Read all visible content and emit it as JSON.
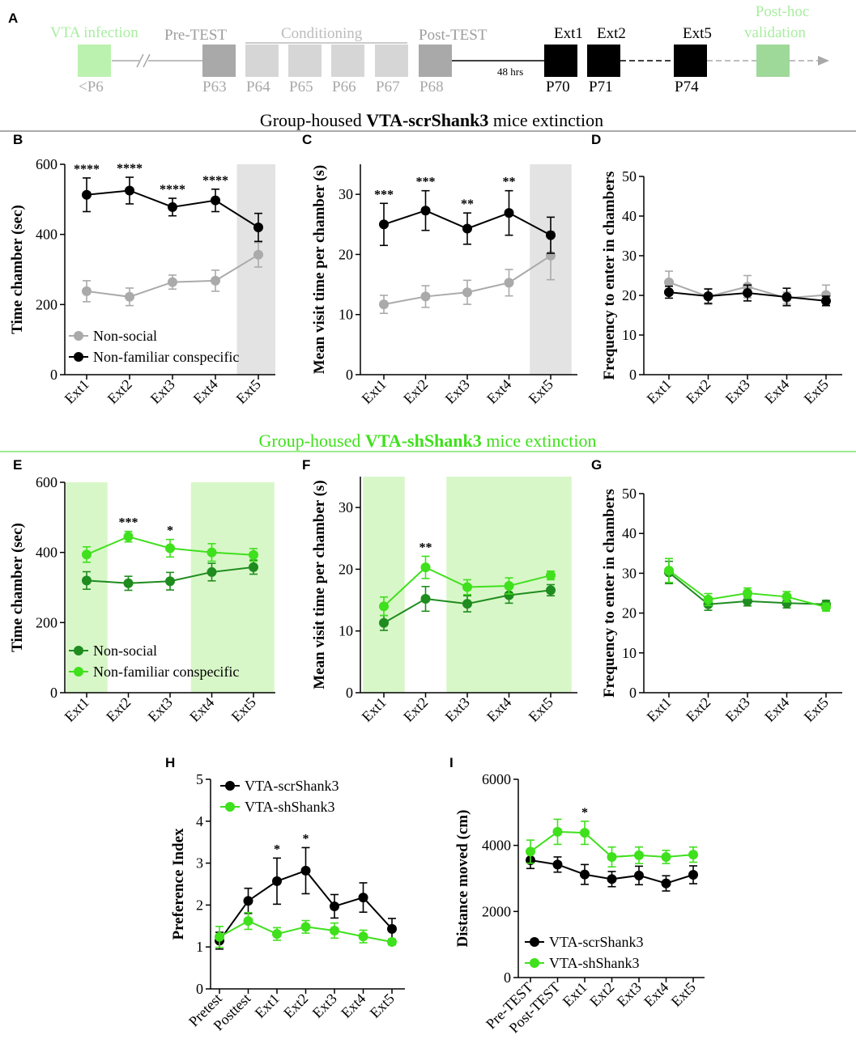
{
  "colors": {
    "black": "#000000",
    "gray": "#aaaaaa",
    "dark_green": "#1e8c1e",
    "light_green": "#3fe01c",
    "shade_gray": "#e3e3e3",
    "shade_green": "#d8f7c8",
    "timeline_green_text": "#a8eea0",
    "timeline_green_box": "#bcf2b0",
    "validation_box": "#9fd99a",
    "conditioning": "#d6d6d6",
    "test_box": "#a9a9a9",
    "section_line_green": "#7be86a"
  },
  "timeline": {
    "panel_label": "A",
    "vta_infection": "VTA infection",
    "pre_test": "Pre-TEST",
    "conditioning": "Conditioning",
    "post_test": "Post-TEST",
    "post_hoc_line1": "Post-hoc",
    "post_hoc_line2": "validation",
    "ext1": "Ext1",
    "ext2": "Ext2",
    "ext5": "Ext5",
    "hrs": "48 hrs",
    "day_lt6": "<P6",
    "days_gray": [
      "P63",
      "P64",
      "P65",
      "P66",
      "P67",
      "P68"
    ],
    "days_black": [
      "P70",
      "P71",
      "P74"
    ]
  },
  "section1": {
    "prefix": "Group-housed ",
    "bold": "VTA-scrShank3",
    "suffix": " mice extinction"
  },
  "section2": {
    "prefix": "Group-housed ",
    "bold": "VTA-shShank3",
    "suffix": " mice extinction"
  },
  "chart_data": [
    {
      "panel": "B",
      "type": "line",
      "ylabel": "Time chamber (sec)",
      "ylim": [
        0,
        600
      ],
      "yticks": [
        0,
        200,
        400,
        600
      ],
      "categories": [
        "Ext1",
        "Ext2",
        "Ext3",
        "Ext4",
        "Ext5"
      ],
      "shaded": [
        [
          4,
          4
        ]
      ],
      "shade": "gray",
      "series": [
        {
          "name": "Non-social",
          "color": "gray",
          "values": [
            238,
            222,
            264,
            268,
            342
          ],
          "errors": [
            30,
            25,
            20,
            30,
            35
          ]
        },
        {
          "name": "Non-familiar conspecific",
          "color": "black",
          "values": [
            513,
            525,
            478,
            497,
            420
          ],
          "errors": [
            48,
            38,
            25,
            32,
            40
          ]
        }
      ],
      "annotations": [
        {
          "index": 0,
          "text": "****"
        },
        {
          "index": 1,
          "text": "****"
        },
        {
          "index": 2,
          "text": "****"
        },
        {
          "index": 3,
          "text": "****"
        }
      ],
      "legend": "bottom-left"
    },
    {
      "panel": "C",
      "type": "line",
      "ylabel": "Mean visit time per chamber (s)",
      "ylim": [
        0,
        35
      ],
      "yticks": [
        0,
        10,
        20,
        30
      ],
      "categories": [
        "Ext1",
        "Ext2",
        "Ext3",
        "Ext4",
        "Ext5"
      ],
      "shaded": [
        [
          4,
          4
        ]
      ],
      "shade": "gray",
      "series": [
        {
          "name": "Non-social",
          "color": "gray",
          "values": [
            11.7,
            13.0,
            13.7,
            15.3,
            19.8
          ],
          "errors": [
            1.5,
            1.8,
            2.0,
            2.2,
            4.0
          ]
        },
        {
          "name": "Non-familiar conspecific",
          "color": "black",
          "values": [
            25.0,
            27.3,
            24.3,
            26.9,
            23.2
          ],
          "errors": [
            3.5,
            3.3,
            2.6,
            3.7,
            3.0
          ]
        }
      ],
      "annotations": [
        {
          "index": 0,
          "text": "***"
        },
        {
          "index": 1,
          "text": "***"
        },
        {
          "index": 2,
          "text": "**"
        },
        {
          "index": 3,
          "text": "**"
        }
      ]
    },
    {
      "panel": "D",
      "type": "line",
      "ylabel": "Frequency to enter in chambers",
      "ylim": [
        0,
        50
      ],
      "yticks": [
        0,
        10,
        20,
        30,
        40,
        50
      ],
      "categories": [
        "Ext1",
        "Ext2",
        "Ext3",
        "Ext4",
        "Ext5"
      ],
      "shaded": [],
      "series": [
        {
          "name": "Non-social",
          "color": "gray",
          "values": [
            23.3,
            19.7,
            22.2,
            19.3,
            20.1
          ],
          "errors": [
            2.8,
            2.0,
            2.8,
            1.5,
            2.5
          ]
        },
        {
          "name": "Non-familiar conspecific",
          "color": "black",
          "values": [
            20.8,
            19.8,
            20.6,
            19.6,
            18.6
          ],
          "errors": [
            1.5,
            1.8,
            2.0,
            2.2,
            1.2
          ]
        }
      ],
      "annotations": []
    },
    {
      "panel": "E",
      "type": "line",
      "ylabel": "Time chamber (sec)",
      "ylim": [
        0,
        600
      ],
      "yticks": [
        0,
        200,
        400,
        600
      ],
      "categories": [
        "Ext1",
        "Ext2",
        "Ext3",
        "Ext4",
        "Ext5"
      ],
      "shaded": [
        [
          0,
          0
        ],
        [
          3,
          4
        ]
      ],
      "shade": "green",
      "series": [
        {
          "name": "Non-social",
          "color": "dark_green",
          "values": [
            320,
            312,
            318,
            344,
            358
          ],
          "errors": [
            25,
            20,
            25,
            25,
            20
          ]
        },
        {
          "name": "Non-familiar conspecific",
          "color": "light_green",
          "values": [
            394,
            445,
            412,
            400,
            393
          ],
          "errors": [
            22,
            15,
            25,
            25,
            18
          ]
        }
      ],
      "annotations": [
        {
          "index": 1,
          "text": "***"
        },
        {
          "index": 2,
          "text": "*"
        }
      ],
      "legend": "bottom-left"
    },
    {
      "panel": "F",
      "type": "line",
      "ylabel": "Mean visit time per chamber (s)",
      "ylim": [
        0,
        35
      ],
      "yticks": [
        0,
        10,
        20,
        30
      ],
      "categories": [
        "Ext1",
        "Ext2",
        "Ext3",
        "Ext4",
        "Ext5"
      ],
      "shaded": [
        [
          0,
          0
        ],
        [
          2,
          4
        ]
      ],
      "shade": "green",
      "series": [
        {
          "name": "Non-social",
          "color": "dark_green",
          "values": [
            11.3,
            15.2,
            14.4,
            15.8,
            16.6
          ],
          "errors": [
            1.2,
            2.0,
            1.3,
            1.3,
            0.9
          ]
        },
        {
          "name": "Non-familiar conspecific",
          "color": "light_green",
          "values": [
            14.0,
            20.3,
            17.1,
            17.3,
            19.0
          ],
          "errors": [
            1.5,
            1.8,
            1.2,
            1.3,
            0.7
          ]
        }
      ],
      "annotations": [
        {
          "index": 1,
          "text": "**"
        }
      ]
    },
    {
      "panel": "G",
      "type": "line",
      "ylabel": "Frequency to enter in chambers",
      "ylim": [
        0,
        50
      ],
      "yticks": [
        0,
        10,
        20,
        30,
        40,
        50
      ],
      "categories": [
        "Ext1",
        "Ext2",
        "Ext3",
        "Ext4",
        "Ext5"
      ],
      "shaded": [],
      "series": [
        {
          "name": "Non-social",
          "color": "dark_green",
          "values": [
            30.2,
            22.2,
            23.0,
            22.5,
            22.2
          ],
          "errors": [
            2.8,
            1.5,
            1.2,
            1.2,
            1.0
          ]
        },
        {
          "name": "Non-familiar conspecific",
          "color": "light_green",
          "values": [
            30.7,
            23.4,
            25.0,
            24.1,
            21.5
          ],
          "errors": [
            3.0,
            1.5,
            1.3,
            1.3,
            1.0
          ]
        }
      ],
      "annotations": []
    },
    {
      "panel": "H",
      "type": "line",
      "ylabel": "Preference Index",
      "ylim": [
        0,
        5
      ],
      "yticks": [
        0,
        1,
        2,
        3,
        4,
        5
      ],
      "categories": [
        "Pretest",
        "Posttest",
        "Ext1",
        "Ext2",
        "Ext3",
        "Ext4",
        "Ext5"
      ],
      "shaded": [],
      "series": [
        {
          "name": "VTA-scrShank3",
          "color": "black",
          "values": [
            1.15,
            2.1,
            2.57,
            2.82,
            1.97,
            2.18,
            1.43
          ],
          "errors": [
            0.2,
            0.3,
            0.55,
            0.55,
            0.28,
            0.35,
            0.25
          ]
        },
        {
          "name": "VTA-shShank3",
          "color": "light_green",
          "values": [
            1.24,
            1.62,
            1.31,
            1.48,
            1.39,
            1.25,
            1.12
          ],
          "errors": [
            0.25,
            0.2,
            0.15,
            0.15,
            0.18,
            0.15,
            0.07
          ]
        }
      ],
      "annotations": [
        {
          "index": 2,
          "text": "*"
        },
        {
          "index": 3,
          "text": "*"
        }
      ],
      "legend": "top-left"
    },
    {
      "panel": "I",
      "type": "line",
      "ylabel": "Distance moved (cm)",
      "ylim": [
        0,
        6000
      ],
      "yticks": [
        0,
        2000,
        4000,
        6000
      ],
      "categories": [
        "Pre-TEST",
        "Post-TEST",
        "Ext1",
        "Ext2",
        "Ext3",
        "Ext4",
        "Ext5"
      ],
      "shaded": [],
      "series": [
        {
          "name": "VTA-scrShank3",
          "color": "black",
          "values": [
            3550,
            3420,
            3120,
            2980,
            3090,
            2850,
            3110
          ],
          "errors": [
            250,
            230,
            300,
            230,
            280,
            230,
            270
          ]
        },
        {
          "name": "VTA-shShank3",
          "color": "light_green",
          "values": [
            3810,
            4410,
            4380,
            3650,
            3700,
            3650,
            3720
          ],
          "errors": [
            350,
            380,
            350,
            300,
            250,
            200,
            230
          ]
        }
      ],
      "annotations": [
        {
          "index": 2,
          "text": "*"
        }
      ],
      "legend": "bottom-left"
    }
  ]
}
